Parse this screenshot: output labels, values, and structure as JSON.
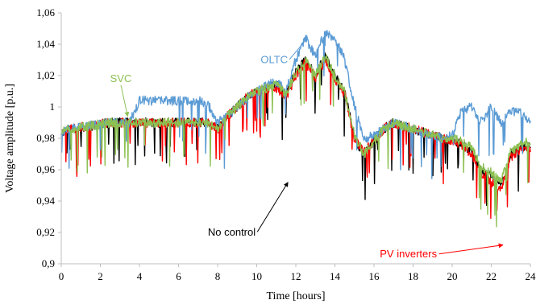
{
  "chart_data": {
    "type": "line",
    "xlabel": "Time [hours]",
    "ylabel": "Voltage amplitude [p.u.]",
    "xlim": [
      0,
      24
    ],
    "ylim": [
      0.9,
      1.06
    ],
    "x_ticks": [
      0,
      2,
      4,
      6,
      8,
      10,
      12,
      14,
      16,
      18,
      20,
      22,
      24
    ],
    "y_ticks": [
      0.9,
      0.92,
      0.94,
      0.96,
      0.98,
      1.0,
      1.02,
      1.04,
      1.06
    ],
    "x_tick_labels": [
      "0",
      "2",
      "4",
      "6",
      "8",
      "10",
      "12",
      "14",
      "16",
      "18",
      "20",
      "22",
      "24"
    ],
    "y_tick_labels": [
      "0,9",
      "0,92",
      "0,94",
      "0,96",
      "0,98",
      "1",
      "1,02",
      "1,04",
      "1,06"
    ],
    "grid": false,
    "x": [
      0,
      0.5,
      1,
      1.5,
      2,
      2.5,
      3,
      3.5,
      4,
      4.5,
      5,
      5.5,
      6,
      6.5,
      7,
      7.5,
      8,
      8.5,
      9,
      9.5,
      10,
      10.5,
      11,
      11.5,
      12,
      12.5,
      13,
      13.5,
      14,
      14.5,
      15,
      15.5,
      16,
      16.5,
      17,
      17.5,
      18,
      18.5,
      19,
      19.5,
      20,
      20.5,
      21,
      21.5,
      22,
      22.5,
      23,
      23.5,
      24
    ],
    "series": [
      {
        "name": "No control",
        "color": "#000000",
        "values": [
          0.984,
          0.986,
          0.987,
          0.988,
          0.989,
          0.99,
          0.99,
          0.99,
          0.99,
          0.99,
          0.99,
          0.99,
          0.99,
          0.99,
          0.99,
          0.99,
          0.986,
          0.994,
          1.0,
          1.006,
          1.01,
          1.012,
          1.014,
          1.008,
          1.022,
          1.03,
          1.02,
          1.032,
          1.02,
          1.01,
          0.98,
          0.97,
          0.978,
          0.986,
          0.99,
          0.988,
          0.986,
          0.984,
          0.982,
          0.98,
          0.978,
          0.976,
          0.972,
          0.96,
          0.956,
          0.95,
          0.97,
          0.974,
          0.976
        ]
      },
      {
        "name": "PV inverters",
        "color": "#ff0000",
        "values": [
          0.984,
          0.986,
          0.987,
          0.988,
          0.989,
          0.99,
          0.99,
          0.99,
          0.99,
          0.99,
          0.99,
          0.99,
          0.99,
          0.99,
          0.99,
          0.99,
          0.986,
          0.994,
          1.0,
          1.006,
          1.01,
          1.012,
          1.012,
          1.006,
          1.02,
          1.028,
          1.018,
          1.03,
          1.018,
          1.008,
          0.98,
          0.972,
          0.978,
          0.986,
          0.99,
          0.988,
          0.986,
          0.984,
          0.982,
          0.98,
          0.978,
          0.976,
          0.97,
          0.958,
          0.952,
          0.948,
          0.968,
          0.972,
          0.974
        ]
      },
      {
        "name": "OLTC",
        "color": "#5b9bd5",
        "values": [
          0.984,
          0.986,
          0.987,
          0.988,
          0.989,
          0.99,
          0.99,
          0.99,
          1.004,
          1.004,
          1.004,
          1.004,
          1.004,
          1.004,
          1.004,
          1.002,
          0.99,
          0.994,
          1.0,
          1.006,
          1.01,
          1.014,
          1.016,
          1.01,
          1.03,
          1.044,
          1.032,
          1.048,
          1.044,
          1.03,
          1.0,
          0.98,
          0.982,
          0.986,
          0.99,
          0.988,
          0.986,
          0.984,
          0.982,
          0.98,
          0.982,
          0.998,
          1.0,
          0.99,
          1.0,
          0.99,
          0.998,
          0.996,
          0.99
        ]
      },
      {
        "name": "SVC",
        "color": "#8cc152",
        "values": [
          0.984,
          0.986,
          0.987,
          0.988,
          0.989,
          0.99,
          0.99,
          0.99,
          0.99,
          0.99,
          0.99,
          0.99,
          0.99,
          0.99,
          0.99,
          0.99,
          0.986,
          0.994,
          1.0,
          1.006,
          1.01,
          1.012,
          1.014,
          1.008,
          1.022,
          1.03,
          1.02,
          1.032,
          1.02,
          1.01,
          0.982,
          0.97,
          0.978,
          0.986,
          0.99,
          0.988,
          0.986,
          0.984,
          0.982,
          0.98,
          0.98,
          0.978,
          0.974,
          0.962,
          0.958,
          0.952,
          0.972,
          0.976,
          0.978
        ]
      }
    ],
    "annotations": [
      {
        "text": "OLTC",
        "color": "#5b9bd5",
        "x": 10.2,
        "y": 1.028,
        "point_x": 12.6,
        "point_y": 1.044
      },
      {
        "text": "SVC",
        "color": "#8cc152",
        "x": 2.5,
        "y": 1.016,
        "point_x": 3.4,
        "point_y": 0.994
      },
      {
        "text": "No control",
        "color": "#000000",
        "x": 7.5,
        "y": 0.918,
        "point_x": 11.6,
        "point_y": 0.952
      },
      {
        "text": "PV inverters",
        "color": "#ff0000",
        "x": 16.3,
        "y": 0.904,
        "point_x": 22.6,
        "point_y": 0.912
      }
    ]
  }
}
